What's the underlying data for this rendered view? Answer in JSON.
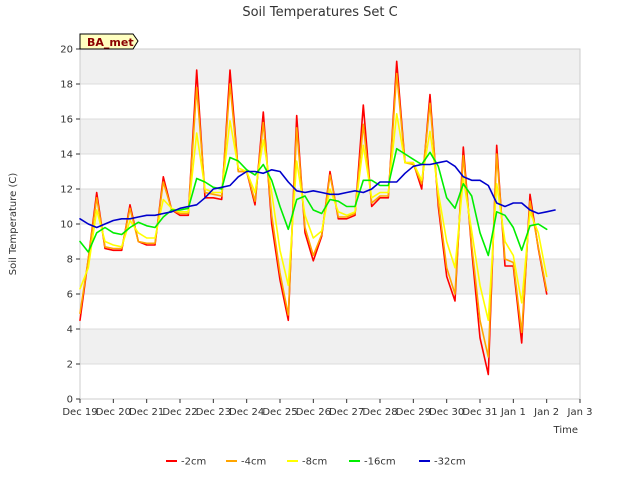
{
  "chart_data": {
    "type": "line",
    "title": "Soil Temperatures Set C",
    "xlabel": "Time",
    "ylabel": "Soil Temperature (C)",
    "ylim": [
      0,
      20
    ],
    "xlim": [
      "2023-12-19",
      "2024-01-03"
    ],
    "x_tick_labels": [
      "Dec 19",
      "Dec 20",
      "Dec 21",
      "Dec 22",
      "Dec 23",
      "Dec 24",
      "Dec 25",
      "Dec 26",
      "Dec 27",
      "Dec 28",
      "Dec 29",
      "Dec 30",
      "Dec 31",
      "Jan 1",
      "Jan 2",
      "Jan 3"
    ],
    "y_ticks": [
      0,
      2,
      4,
      6,
      8,
      10,
      12,
      14,
      16,
      18,
      20
    ],
    "grid": true,
    "background_bands": true,
    "legend_position": "bottom",
    "badge_label": "BA_met",
    "x_dates": [
      "2023-12-19",
      "2023-12-19 06:00",
      "2023-12-19 12:00",
      "2023-12-19 18:00",
      "2023-12-20",
      "2023-12-20 06:00",
      "2023-12-20 12:00",
      "2023-12-20 18:00",
      "2023-12-21",
      "2023-12-21 06:00",
      "2023-12-21 12:00",
      "2023-12-21 18:00",
      "2023-12-22",
      "2023-12-22 06:00",
      "2023-12-22 12:00",
      "2023-12-22 18:00",
      "2023-12-23",
      "2023-12-23 06:00",
      "2023-12-23 12:00",
      "2023-12-23 18:00",
      "2023-12-24",
      "2023-12-24 06:00",
      "2023-12-24 12:00",
      "2023-12-24 18:00",
      "2023-12-25",
      "2023-12-25 06:00",
      "2023-12-25 12:00",
      "2023-12-25 18:00",
      "2023-12-26",
      "2023-12-26 06:00",
      "2023-12-26 12:00",
      "2023-12-26 18:00",
      "2023-12-27",
      "2023-12-27 06:00",
      "2023-12-27 12:00",
      "2023-12-27 18:00",
      "2023-12-28",
      "2023-12-28 06:00",
      "2023-12-28 12:00",
      "2023-12-28 18:00",
      "2023-12-29",
      "2023-12-29 06:00",
      "2023-12-29 12:00",
      "2023-12-29 18:00",
      "2023-12-30",
      "2023-12-30 06:00",
      "2023-12-30 12:00",
      "2023-12-30 18:00",
      "2023-12-31",
      "2023-12-31 06:00",
      "2023-12-31 12:00",
      "2023-12-31 18:00",
      "2024-01-01",
      "2024-01-01 06:00",
      "2024-01-01 12:00",
      "2024-01-01 18:00",
      "2024-01-02",
      "2024-01-02 06:00",
      "2024-01-02 09:00"
    ],
    "series": [
      {
        "name": "-2cm",
        "color": "#ff0000",
        "values": [
          4.5,
          8.0,
          11.8,
          8.6,
          8.5,
          8.5,
          11.1,
          9.0,
          8.8,
          8.8,
          12.7,
          10.8,
          10.5,
          10.5,
          18.8,
          11.5,
          11.5,
          11.4,
          18.8,
          13.0,
          13.0,
          11.1,
          16.4,
          10.0,
          6.8,
          4.5,
          16.2,
          9.5,
          7.9,
          9.3,
          13.0,
          10.3,
          10.3,
          10.5,
          16.8,
          11.0,
          11.5,
          11.5,
          19.3,
          13.5,
          13.5,
          12.0,
          17.4,
          11.0,
          7.0,
          5.6,
          14.4,
          8.5,
          3.5,
          1.4,
          14.5,
          7.6,
          7.6,
          3.2,
          11.7,
          8.6,
          6.0,
          null,
          null
        ]
      },
      {
        "name": "-4cm",
        "color": "#ffa500",
        "values": [
          4.9,
          8.0,
          11.5,
          8.7,
          8.6,
          8.6,
          10.9,
          9.0,
          8.9,
          8.9,
          12.4,
          10.8,
          10.6,
          10.6,
          17.8,
          11.8,
          11.7,
          11.6,
          18.0,
          13.0,
          13.0,
          11.3,
          15.8,
          10.5,
          7.2,
          4.8,
          15.5,
          9.8,
          8.2,
          9.4,
          12.8,
          10.4,
          10.4,
          10.6,
          15.7,
          11.2,
          11.6,
          11.6,
          18.6,
          13.5,
          13.4,
          12.3,
          16.9,
          11.3,
          7.5,
          6.0,
          13.9,
          8.8,
          4.5,
          2.4,
          14.0,
          8.0,
          7.8,
          3.8,
          11.3,
          8.7,
          6.2,
          null,
          null
        ]
      },
      {
        "name": "-8cm",
        "color": "#ffff00",
        "values": [
          6.3,
          7.5,
          10.8,
          9.0,
          8.8,
          8.7,
          10.2,
          9.5,
          9.2,
          9.2,
          11.4,
          10.9,
          10.7,
          10.7,
          15.2,
          12.0,
          11.8,
          11.8,
          15.9,
          13.2,
          13.0,
          11.8,
          14.8,
          11.8,
          8.5,
          6.5,
          13.6,
          10.5,
          9.2,
          9.6,
          12.0,
          10.7,
          10.5,
          10.7,
          14.5,
          11.5,
          11.8,
          11.8,
          16.3,
          13.5,
          13.5,
          12.5,
          15.3,
          11.8,
          9.0,
          7.5,
          12.6,
          9.6,
          6.5,
          4.5,
          12.3,
          9.0,
          8.2,
          5.5,
          10.7,
          9.5,
          7.0,
          null,
          null
        ]
      },
      {
        "name": "-16cm",
        "color": "#00ee00",
        "values": [
          9.0,
          8.4,
          9.5,
          9.8,
          9.5,
          9.4,
          9.8,
          10.1,
          9.9,
          9.8,
          10.4,
          10.8,
          10.8,
          10.9,
          12.6,
          12.4,
          12.1,
          12.0,
          13.8,
          13.6,
          13.1,
          12.8,
          13.4,
          12.5,
          11.0,
          9.7,
          11.4,
          11.6,
          10.8,
          10.6,
          11.4,
          11.3,
          11.0,
          11.0,
          12.5,
          12.5,
          12.2,
          12.2,
          14.3,
          14.0,
          13.7,
          13.4,
          14.1,
          13.3,
          11.5,
          10.9,
          12.3,
          11.6,
          9.5,
          8.2,
          10.7,
          10.5,
          9.8,
          8.5,
          9.9,
          10.0,
          9.7,
          null,
          null
        ]
      },
      {
        "name": "-32cm",
        "color": "#0000cc",
        "values": [
          10.3,
          10.0,
          9.8,
          10.0,
          10.2,
          10.3,
          10.3,
          10.4,
          10.5,
          10.5,
          10.6,
          10.7,
          10.9,
          11.0,
          11.1,
          11.5,
          12.0,
          12.1,
          12.2,
          12.7,
          13.0,
          13.0,
          12.9,
          13.1,
          13.0,
          12.4,
          11.9,
          11.8,
          11.9,
          11.8,
          11.7,
          11.7,
          11.8,
          11.9,
          11.8,
          12.0,
          12.4,
          12.4,
          12.4,
          12.9,
          13.3,
          13.4,
          13.4,
          13.5,
          13.6,
          13.3,
          12.7,
          12.5,
          12.5,
          12.2,
          11.2,
          11.0,
          11.2,
          11.2,
          10.8,
          10.6,
          10.7,
          10.8,
          null
        ]
      }
    ]
  }
}
